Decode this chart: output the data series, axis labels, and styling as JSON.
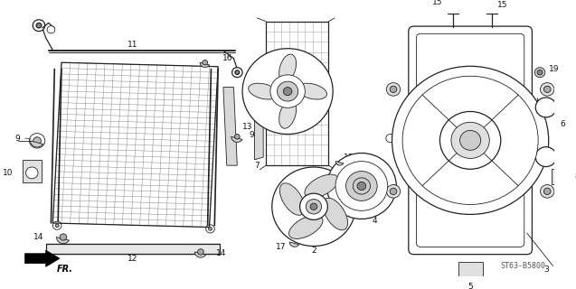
{
  "bg_color": "#ffffff",
  "line_color": "#222222",
  "label_color": "#111111",
  "figsize": [
    6.37,
    3.2
  ],
  "dpi": 100,
  "diagram_code": "ST63-B5800"
}
